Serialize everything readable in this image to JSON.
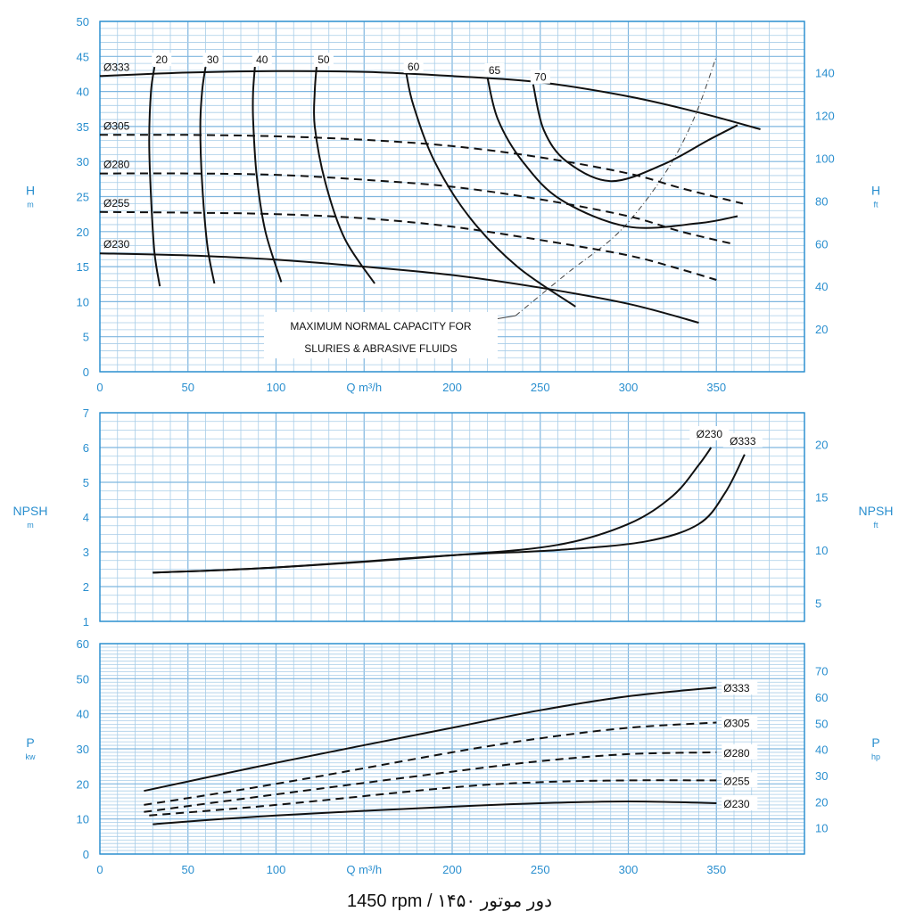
{
  "caption": "1450 rpm / دور موتور ۱۴۵۰",
  "colors": {
    "axis": "#2a8fcf",
    "grid": "#a8cde8",
    "grid_major": "#7fb6df",
    "curve": "#111111"
  },
  "chart_data": [
    {
      "type": "line",
      "id": "head",
      "ylabel": "H",
      "ylabel_unit": "m",
      "y2label": "H",
      "y2label_unit": "ft",
      "xlabel_text": "Q m³/h",
      "xlim": [
        0,
        400
      ],
      "ylim": [
        0,
        50
      ],
      "xticks": [
        0,
        50,
        100,
        150,
        200,
        250,
        300,
        350
      ],
      "xtick_labels": [
        "0",
        "50",
        "100",
        "",
        "200",
        "250",
        "300",
        "350"
      ],
      "yticks": [
        0,
        5,
        10,
        15,
        20,
        25,
        30,
        35,
        40,
        45,
        50
      ],
      "y2ticks": [
        20,
        40,
        60,
        80,
        100,
        120,
        140
      ],
      "y2_per_y1": 3.2808,
      "grid": true,
      "series": [
        {
          "name": "Ø333",
          "dash": false,
          "points": [
            [
              0,
              42.2
            ],
            [
              50,
              42.7
            ],
            [
              100,
              42.9
            ],
            [
              150,
              42.8
            ],
            [
              200,
              42.2
            ],
            [
              250,
              41.3
            ],
            [
              300,
              39.3
            ],
            [
              340,
              37.0
            ],
            [
              375,
              34.6
            ]
          ]
        },
        {
          "name": "Ø305",
          "dash": true,
          "points": [
            [
              0,
              33.8
            ],
            [
              50,
              33.8
            ],
            [
              100,
              33.6
            ],
            [
              150,
              33.1
            ],
            [
              200,
              32.2
            ],
            [
              250,
              30.6
            ],
            [
              300,
              28.3
            ],
            [
              330,
              26.2
            ],
            [
              365,
              24.0
            ]
          ]
        },
        {
          "name": "Ø280",
          "dash": true,
          "points": [
            [
              0,
              28.3
            ],
            [
              50,
              28.3
            ],
            [
              100,
              28.1
            ],
            [
              150,
              27.4
            ],
            [
              200,
              26.4
            ],
            [
              250,
              24.6
            ],
            [
              300,
              22.2
            ],
            [
              330,
              20.0
            ],
            [
              360,
              18.2
            ]
          ]
        },
        {
          "name": "Ø255",
          "dash": true,
          "points": [
            [
              0,
              22.8
            ],
            [
              50,
              22.7
            ],
            [
              100,
              22.5
            ],
            [
              150,
              21.9
            ],
            [
              200,
              20.7
            ],
            [
              250,
              18.8
            ],
            [
              300,
              16.6
            ],
            [
              330,
              14.6
            ],
            [
              350,
              13.1
            ]
          ]
        },
        {
          "name": "Ø230",
          "dash": false,
          "points": [
            [
              0,
              16.9
            ],
            [
              50,
              16.6
            ],
            [
              100,
              16.0
            ],
            [
              150,
              15.0
            ],
            [
              200,
              13.8
            ],
            [
              250,
              12.0
            ],
            [
              300,
              9.7
            ],
            [
              340,
              7.0
            ]
          ]
        }
      ],
      "efficiency": [
        {
          "label": "20",
          "points": [
            [
              34,
              12.2
            ],
            [
              31,
              17
            ],
            [
              29,
              25
            ],
            [
              28,
              33
            ],
            [
              29,
              40
            ],
            [
              31,
              43.5
            ]
          ]
        },
        {
          "label": "30",
          "points": [
            [
              65,
              12.6
            ],
            [
              61,
              18
            ],
            [
              58,
              27
            ],
            [
              57,
              35
            ],
            [
              58,
              40
            ],
            [
              60,
              43.5
            ]
          ]
        },
        {
          "label": "40",
          "points": [
            [
              103,
              12.8
            ],
            [
              94,
              20
            ],
            [
              89,
              28
            ],
            [
              87,
              36
            ],
            [
              87,
              40
            ],
            [
              88,
              43.5
            ]
          ]
        },
        {
          "label": "50",
          "points": [
            [
              156,
              12.6
            ],
            [
              139,
              19
            ],
            [
              128,
              27
            ],
            [
              122,
              35
            ],
            [
              122,
              40
            ],
            [
              123,
              43.5
            ]
          ]
        },
        {
          "label": "60",
          "points": [
            [
              270,
              9.3
            ],
            [
              237,
              15
            ],
            [
              210,
              22
            ],
            [
              190,
              30
            ],
            [
              178,
              38
            ],
            [
              174,
              42.5
            ]
          ]
        },
        {
          "label": "65",
          "points": [
            [
              362,
              22.2
            ],
            [
              340,
              21.2
            ],
            [
              300,
              20.7
            ],
            [
              262,
              24.5
            ],
            [
              240,
              30
            ],
            [
              226,
              36
            ],
            [
              220,
              42
            ]
          ]
        },
        {
          "label": "70",
          "points": [
            [
              362,
              35.2
            ],
            [
              345,
              33
            ],
            [
              320,
              29.6
            ],
            [
              290,
              27.2
            ],
            [
              265,
              30
            ],
            [
              252,
              34.5
            ],
            [
              246,
              41
            ]
          ]
        }
      ],
      "capacity_line": [
        [
          236,
          8
        ],
        [
          265,
          14
        ],
        [
          295,
          20
        ],
        [
          320,
          28
        ],
        [
          337,
          36
        ],
        [
          350,
          45
        ]
      ],
      "note": [
        "MAXIMUM NORMAL CAPACITY FOR",
        "SLURIES & ABRASIVE FLUIDS"
      ]
    },
    {
      "type": "line",
      "id": "npsh",
      "ylabel": "NPSH",
      "ylabel_unit": "m",
      "y2label": "NPSH",
      "y2label_unit": "ft",
      "xlim": [
        0,
        400
      ],
      "ylim": [
        1,
        7
      ],
      "yticks": [
        1,
        2,
        3,
        4,
        5,
        6,
        7
      ],
      "y2ticks": [
        5,
        10,
        15,
        20
      ],
      "y2_per_y1": 3.2808,
      "grid": true,
      "series": [
        {
          "name": "Ø230",
          "points": [
            [
              30,
              2.4
            ],
            [
              100,
              2.55
            ],
            [
              200,
              2.9
            ],
            [
              260,
              3.2
            ],
            [
              300,
              3.8
            ],
            [
              325,
              4.6
            ],
            [
              340,
              5.5
            ],
            [
              347,
              6.0
            ]
          ]
        },
        {
          "name": "Ø333",
          "points": [
            [
              30,
              2.4
            ],
            [
              100,
              2.55
            ],
            [
              200,
              2.9
            ],
            [
              260,
              3.05
            ],
            [
              310,
              3.3
            ],
            [
              340,
              3.8
            ],
            [
              355,
              4.7
            ],
            [
              366,
              5.8
            ]
          ]
        }
      ]
    },
    {
      "type": "line",
      "id": "power",
      "ylabel": "P",
      "ylabel_unit": "kw",
      "y2label": "P",
      "y2label_unit": "hp",
      "xlabel_text": "Q m³/h",
      "xlim": [
        0,
        400
      ],
      "ylim": [
        0,
        60
      ],
      "xticks": [
        0,
        50,
        100,
        150,
        200,
        250,
        300,
        350
      ],
      "xtick_labels": [
        "0",
        "50",
        "100",
        "",
        "200",
        "250",
        "300",
        "350"
      ],
      "yticks": [
        0,
        10,
        20,
        30,
        40,
        50,
        60
      ],
      "y2ticks": [
        10,
        20,
        30,
        40,
        50,
        60,
        70
      ],
      "y2_per_y1": 1.341,
      "grid": true,
      "series": [
        {
          "name": "Ø333",
          "dash": false,
          "points": [
            [
              25,
              18
            ],
            [
              100,
              26
            ],
            [
              200,
              36
            ],
            [
              250,
              41
            ],
            [
              300,
              45
            ],
            [
              350,
              47.5
            ]
          ]
        },
        {
          "name": "Ø305",
          "dash": true,
          "points": [
            [
              25,
              14
            ],
            [
              100,
              20
            ],
            [
              200,
              29
            ],
            [
              250,
              33
            ],
            [
              300,
              36
            ],
            [
              350,
              37.5
            ]
          ]
        },
        {
          "name": "Ø280",
          "dash": true,
          "points": [
            [
              25,
              12
            ],
            [
              100,
              17
            ],
            [
              200,
              23.5
            ],
            [
              250,
              26.5
            ],
            [
              300,
              28.5
            ],
            [
              350,
              29
            ]
          ]
        },
        {
          "name": "Ø255",
          "dash": true,
          "points": [
            [
              28,
              11
            ],
            [
              100,
              14
            ],
            [
              200,
              19
            ],
            [
              250,
              20.5
            ],
            [
              300,
              21
            ],
            [
              350,
              21
            ]
          ]
        },
        {
          "name": "Ø230",
          "dash": false,
          "points": [
            [
              30,
              8.5
            ],
            [
              100,
              11
            ],
            [
              200,
              13.5
            ],
            [
              250,
              14.5
            ],
            [
              300,
              15
            ],
            [
              350,
              14.5
            ]
          ]
        }
      ]
    }
  ]
}
